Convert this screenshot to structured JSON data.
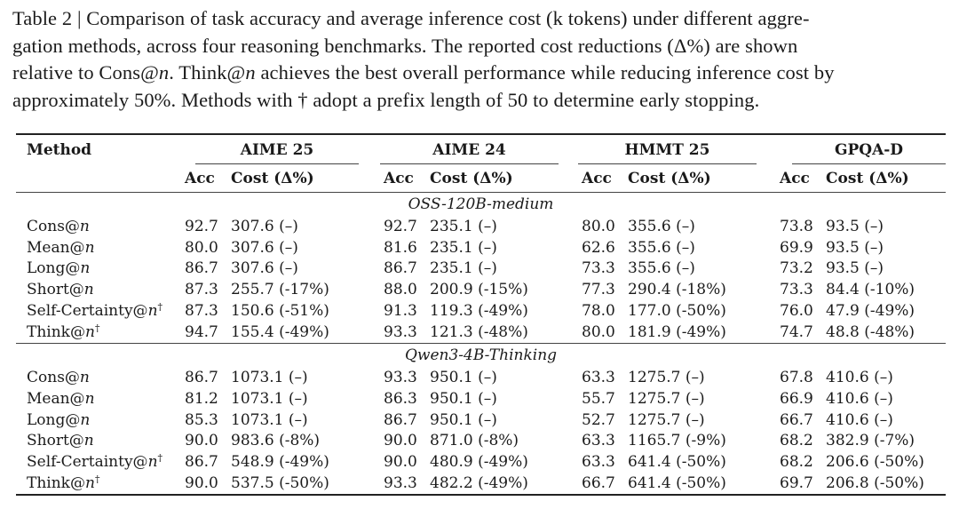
{
  "caption": {
    "line1": "Table 2 | Comparison of task accuracy and average inference cost (k tokens) under different aggre-",
    "line2": "gation methods, across four reasoning benchmarks. The reported cost reductions (Δ%) are shown",
    "line3a": "relative to Cons@",
    "line3b": "n",
    "line3c": ". Think@",
    "line3d": "n",
    "line3e": " achieves the best overall performance while reducing inference cost by",
    "line4": "approximately 50%. Methods with † adopt a prefix length of 50 to determine early stopping."
  },
  "table": {
    "method_header": "Method",
    "benchmarks": [
      "AIME 25",
      "AIME 24",
      "HMMT 25",
      "GPQA-D"
    ],
    "acc_header": "Acc",
    "cost_header": "Cost (Δ%)",
    "sections": [
      {
        "name": "OSS-120B-medium",
        "rows": [
          {
            "m": "Cons@",
            "v": "n",
            "dag": "",
            "c": [
              [
                "92.7",
                "307.6 (–)"
              ],
              [
                "92.7",
                "235.1 (–)"
              ],
              [
                "80.0",
                "355.6 (–)"
              ],
              [
                "73.8",
                "93.5 (–)"
              ]
            ],
            "b": [
              false,
              false,
              false,
              false
            ]
          },
          {
            "m": "Mean@",
            "v": "n",
            "dag": "",
            "c": [
              [
                "80.0",
                "307.6 (–)"
              ],
              [
                "81.6",
                "235.1 (–)"
              ],
              [
                "62.6",
                "355.6 (–)"
              ],
              [
                "69.9",
                "93.5 (–)"
              ]
            ],
            "b": [
              false,
              false,
              false,
              false
            ]
          },
          {
            "m": "Long@",
            "v": "n",
            "dag": "",
            "c": [
              [
                "86.7",
                "307.6 (–)"
              ],
              [
                "86.7",
                "235.1 (–)"
              ],
              [
                "73.3",
                "355.6 (–)"
              ],
              [
                "73.2",
                "93.5 (–)"
              ]
            ],
            "b": [
              false,
              false,
              false,
              false
            ]
          },
          {
            "m": "Short@",
            "v": "n",
            "dag": "",
            "c": [
              [
                "87.3",
                "255.7 (-17%)"
              ],
              [
                "88.0",
                "200.9 (-15%)"
              ],
              [
                "77.3",
                "290.4 (-18%)"
              ],
              [
                "73.3",
                "84.4 (-10%)"
              ]
            ],
            "b": [
              false,
              false,
              false,
              false
            ]
          },
          {
            "m": "Self-Certainty@",
            "v": "n",
            "dag": "†",
            "c": [
              [
                "87.3",
                "150.6 (-51%)"
              ],
              [
                "91.3",
                "119.3 (-49%)"
              ],
              [
                "78.0",
                "177.0 (-50%)"
              ],
              [
                "76.0",
                "47.9 (-49%)"
              ]
            ],
            "b": [
              false,
              false,
              false,
              true
            ]
          },
          {
            "m": "Think@",
            "v": "n",
            "dag": "†",
            "c": [
              [
                "94.7",
                "155.4 (-49%)"
              ],
              [
                "93.3",
                "121.3 (-48%)"
              ],
              [
                "80.0",
                "181.9 (-49%)"
              ],
              [
                "74.7",
                "48.8 (-48%)"
              ]
            ],
            "b": [
              true,
              true,
              true,
              false
            ]
          }
        ]
      },
      {
        "name": "Qwen3-4B-Thinking",
        "rows": [
          {
            "m": "Cons@",
            "v": "n",
            "dag": "",
            "c": [
              [
                "86.7",
                "1073.1 (–)"
              ],
              [
                "93.3",
                "950.1 (–)"
              ],
              [
                "63.3",
                "1275.7 (–)"
              ],
              [
                "67.8",
                "410.6 (–)"
              ]
            ],
            "b": [
              false,
              false,
              false,
              false
            ]
          },
          {
            "m": "Mean@",
            "v": "n",
            "dag": "",
            "c": [
              [
                "81.2",
                "1073.1 (–)"
              ],
              [
                "86.3",
                "950.1 (–)"
              ],
              [
                "55.7",
                "1275.7 (–)"
              ],
              [
                "66.9",
                "410.6 (–)"
              ]
            ],
            "b": [
              false,
              false,
              false,
              false
            ]
          },
          {
            "m": "Long@",
            "v": "n",
            "dag": "",
            "c": [
              [
                "85.3",
                "1073.1 (–)"
              ],
              [
                "86.7",
                "950.1 (–)"
              ],
              [
                "52.7",
                "1275.7 (–)"
              ],
              [
                "66.7",
                "410.6 (–)"
              ]
            ],
            "b": [
              false,
              false,
              false,
              false
            ]
          },
          {
            "m": "Short@",
            "v": "n",
            "dag": "",
            "c": [
              [
                "90.0",
                "983.6 (-8%)"
              ],
              [
                "90.0",
                "871.0 (-8%)"
              ],
              [
                "63.3",
                "1165.7 (-9%)"
              ],
              [
                "68.2",
                "382.9 (-7%)"
              ]
            ],
            "b": [
              false,
              false,
              false,
              false
            ]
          },
          {
            "m": "Self-Certainty@",
            "v": "n",
            "dag": "†",
            "c": [
              [
                "86.7",
                "548.9 (-49%)"
              ],
              [
                "90.0",
                "480.9 (-49%)"
              ],
              [
                "63.3",
                "641.4 (-50%)"
              ],
              [
                "68.2",
                "206.6 (-50%)"
              ]
            ],
            "b": [
              false,
              false,
              false,
              false
            ]
          },
          {
            "m": "Think@",
            "v": "n",
            "dag": "†",
            "c": [
              [
                "90.0",
                "537.5 (-50%)"
              ],
              [
                "93.3",
                "482.2 (-49%)"
              ],
              [
                "66.7",
                "641.4 (-50%)"
              ],
              [
                "69.7",
                "206.8 (-50%)"
              ]
            ],
            "b": [
              true,
              true,
              true,
              true
            ]
          }
        ]
      }
    ]
  }
}
